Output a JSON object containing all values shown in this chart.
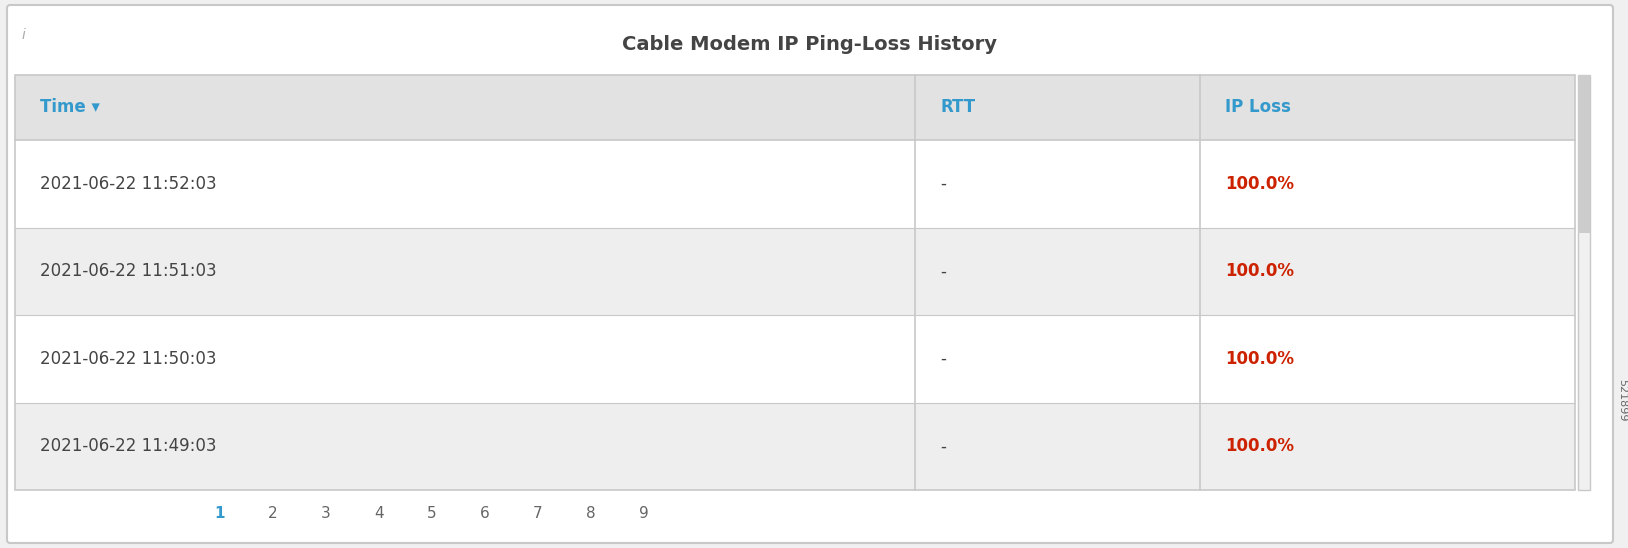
{
  "title": "Cable Modem IP Ping-Loss History",
  "title_fontsize": 14,
  "title_color": "#444444",
  "panel_bg": "#f0f0f0",
  "table_bg": "#ffffff",
  "outer_border_color": "#c8c8c8",
  "header_bg": "#e2e2e2",
  "row_colors": [
    "#ffffff",
    "#eeeeee",
    "#ffffff",
    "#eeeeee"
  ],
  "col_headers": [
    "Time ▾",
    "RTT",
    "IP Loss"
  ],
  "col_header_color": "#3399cc",
  "col_header_fontsize": 12,
  "rows": [
    [
      "2021-06-22 11:52:03",
      "-",
      "100.0%"
    ],
    [
      "2021-06-22 11:51:03",
      "-",
      "100.0%"
    ],
    [
      "2021-06-22 11:50:03",
      "-",
      "100.0%"
    ],
    [
      "2021-06-22 11:49:03",
      "-",
      "100.0%"
    ]
  ],
  "row_fontsize": 12,
  "ip_loss_color": "#cc2200",
  "rtt_color": "#444444",
  "time_color": "#444444",
  "pagination": [
    "1",
    "2",
    "3",
    "4",
    "5",
    "6",
    "7",
    "8",
    "9"
  ],
  "pagination_active": "1",
  "pagination_active_color": "#3399cc",
  "pagination_inactive_color": "#666666",
  "pagination_fontsize": 11,
  "info_icon_color": "#aaaaaa",
  "scrollbar_bg": "#f0f0f0",
  "scrollbar_thumb": "#cccccc",
  "side_label": "521899",
  "side_label_color": "#666666",
  "side_label_fontsize": 8
}
